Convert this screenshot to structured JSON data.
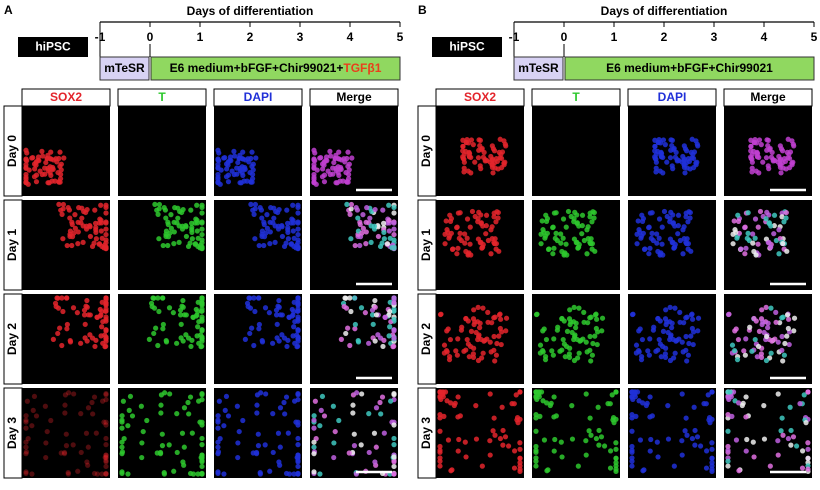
{
  "panels": [
    {
      "label": "A",
      "timeline": {
        "title": "Days of differentiation",
        "ticks": [
          "-1",
          "0",
          "1",
          "2",
          "3",
          "4",
          "5"
        ],
        "start": "hiPSC",
        "stages": [
          {
            "label": "mTeSR"
          },
          {
            "label": "E6 medium+bFGF+Chir99021+",
            "extra": "TGFβ1"
          }
        ]
      },
      "channels": [
        {
          "name": "SOX2",
          "color": "#e3242b"
        },
        {
          "name": "T",
          "color": "#2ec82e"
        },
        {
          "name": "DAPI",
          "color": "#2030d8"
        },
        {
          "name": "Merge",
          "color": "#000000"
        }
      ],
      "rows": [
        "Day 0",
        "Day 1",
        "Day 2",
        "Day 3"
      ]
    },
    {
      "label": "B",
      "timeline": {
        "title": "Days of differentiation",
        "ticks": [
          "-1",
          "0",
          "1",
          "2",
          "3",
          "4",
          "5"
        ],
        "start": "hiPSC",
        "stages": [
          {
            "label": "mTeSR"
          },
          {
            "label": "E6 medium+bFGF+Chir99021"
          }
        ]
      },
      "channels": [
        {
          "name": "SOX2",
          "color": "#e3242b"
        },
        {
          "name": "T",
          "color": "#2ec82e"
        },
        {
          "name": "DAPI",
          "color": "#2030d8"
        },
        {
          "name": "Merge",
          "color": "#000000"
        }
      ],
      "rows": [
        "Day 0",
        "Day 1",
        "Day 2",
        "Day 3"
      ]
    }
  ]
}
